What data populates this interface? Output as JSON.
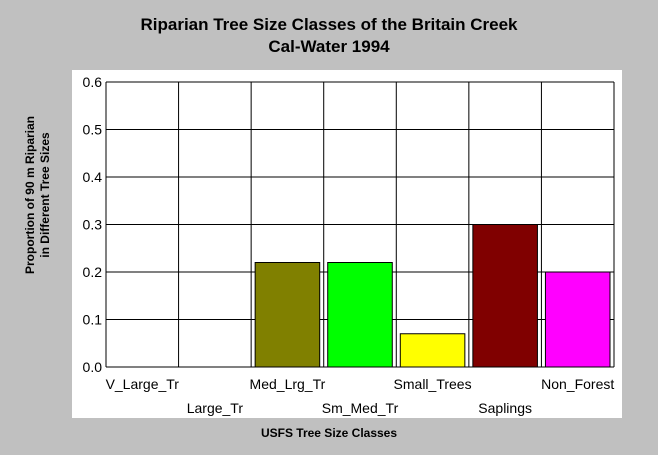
{
  "chart_data": {
    "type": "bar",
    "title": "Riparian Tree Size Classes of the Britain Creek",
    "subtitle": "Cal-Water 1994",
    "xlabel": "USFS Tree Size Classes",
    "ylabel": [
      "Proportion of 90 m Riparian",
      "in Different Tree Sizes"
    ],
    "categories": [
      "V_Large_Tr",
      "Large_Tr",
      "Med_Lrg_Tr",
      "Sm_Med_Tr",
      "Small_Trees",
      "Saplings",
      "Non_Forest"
    ],
    "values": [
      0,
      0,
      0.22,
      0.22,
      0.07,
      0.3,
      0.2
    ],
    "colors": [
      "#808000",
      "#808000",
      "#808000",
      "#00ff00",
      "#ffff00",
      "#800000",
      "#ff00ff"
    ],
    "yticks": [
      "0.0",
      "0.1",
      "0.2",
      "0.3",
      "0.4",
      "0.5",
      "0.6"
    ],
    "ylim": [
      0,
      0.6
    ],
    "grid": true
  }
}
